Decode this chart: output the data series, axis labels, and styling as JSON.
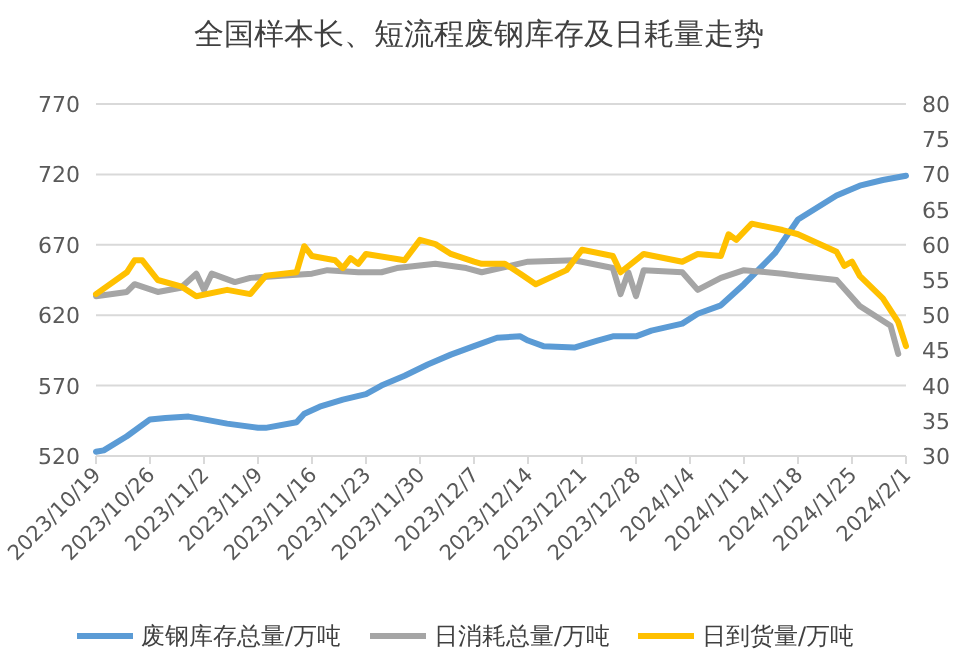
{
  "chart_data": {
    "type": "line",
    "title": "全国样本长、短流程废钢库存及日耗量走势",
    "xlim": [
      "2023-10-19",
      "2024-02-01"
    ],
    "xticks": [
      {
        "value": "2023-10-19",
        "label": "2023/10/19"
      },
      {
        "value": "2023-10-26",
        "label": "2023/10/26"
      },
      {
        "value": "2023-11-02",
        "label": "2023/11/2"
      },
      {
        "value": "2023-11-09",
        "label": "2023/11/9"
      },
      {
        "value": "2023-11-16",
        "label": "2023/11/16"
      },
      {
        "value": "2023-11-23",
        "label": "2023/11/23"
      },
      {
        "value": "2023-11-30",
        "label": "2023/11/30"
      },
      {
        "value": "2023-12-07",
        "label": "2023/12/7"
      },
      {
        "value": "2023-12-14",
        "label": "2023/12/14"
      },
      {
        "value": "2023-12-21",
        "label": "2023/12/21"
      },
      {
        "value": "2023-12-28",
        "label": "2023/12/28"
      },
      {
        "value": "2024-01-04",
        "label": "2024/1/4"
      },
      {
        "value": "2024-01-11",
        "label": "2024/1/11"
      },
      {
        "value": "2024-01-18",
        "label": "2024/1/18"
      },
      {
        "value": "2024-01-25",
        "label": "2024/1/25"
      },
      {
        "value": "2024-02-01",
        "label": "2024/2/1"
      }
    ],
    "ylim": [
      520,
      770
    ],
    "yticks": [
      520,
      570,
      620,
      670,
      720,
      770
    ],
    "y2lim": [
      30,
      80
    ],
    "y2ticks": [
      30,
      35,
      40,
      45,
      50,
      55,
      60,
      65,
      70,
      75,
      80
    ],
    "grid": "y",
    "legend": "bottom",
    "series": [
      {
        "name": "废钢库存总量/万吨",
        "color": "#5b9bd5",
        "x": [
          "2023-10-19",
          "2023-10-20",
          "2023-10-23",
          "2023-10-26",
          "2023-10-28",
          "2023-10-31",
          "2023-11-02",
          "2023-11-05",
          "2023-11-09",
          "2023-11-10",
          "2023-11-14",
          "2023-11-15",
          "2023-11-17",
          "2023-11-20",
          "2023-11-23",
          "2023-11-25",
          "2023-11-28",
          "2023-12-01",
          "2023-12-04",
          "2023-12-07",
          "2023-12-10",
          "2023-12-13",
          "2023-12-14",
          "2023-12-16",
          "2023-12-20",
          "2023-12-23",
          "2023-12-25",
          "2023-12-28",
          "2023-12-30",
          "2024-01-03",
          "2024-01-05",
          "2024-01-08",
          "2024-01-11",
          "2024-01-15",
          "2024-01-18",
          "2024-01-23",
          "2024-01-26",
          "2024-01-29",
          "2024-02-01"
        ],
        "values": [
          523,
          524,
          534,
          546,
          547,
          548,
          546,
          543,
          540,
          540,
          544,
          550,
          555,
          560,
          564,
          570,
          577,
          585,
          592,
          598,
          604,
          605,
          602,
          598,
          597,
          602,
          605,
          605,
          609,
          614,
          621,
          627,
          642,
          664,
          688,
          705,
          712,
          716,
          719
        ]
      },
      {
        "name": "日消耗总量/万吨",
        "color": "#a5a5a5",
        "axis": "y2",
        "x": [
          "2023-10-19",
          "2023-10-23",
          "2023-10-24",
          "2023-10-27",
          "2023-10-30",
          "2023-11-01",
          "2023-11-02",
          "2023-11-03",
          "2023-11-06",
          "2023-11-08",
          "2023-11-12",
          "2023-11-16",
          "2023-11-18",
          "2023-11-22",
          "2023-11-25",
          "2023-11-27",
          "2023-12-02",
          "2023-12-06",
          "2023-12-08",
          "2023-12-14",
          "2023-12-20",
          "2023-12-25",
          "2023-12-26",
          "2023-12-27",
          "2023-12-28",
          "2023-12-29",
          "2024-01-03",
          "2024-01-05",
          "2024-01-08",
          "2024-01-11",
          "2024-01-16",
          "2024-01-18",
          "2024-01-23",
          "2024-01-26",
          "2024-01-30",
          "2024-01-31"
        ],
        "values": [
          52.7,
          53.3,
          54.4,
          53.3,
          53.9,
          55.9,
          53.6,
          55.9,
          54.7,
          55.3,
          55.6,
          55.9,
          56.4,
          56.1,
          56.1,
          56.7,
          57.3,
          56.7,
          56.1,
          57.6,
          57.8,
          56.7,
          53,
          56.1,
          52.7,
          56.4,
          56.1,
          53.6,
          55.3,
          56.4,
          55.9,
          55.6,
          55,
          51.3,
          48.5,
          44.5
        ]
      },
      {
        "name": "日到货量/万吨",
        "color": "#ffc000",
        "axis": "y2",
        "x": [
          "2023-10-19",
          "2023-10-23",
          "2023-10-24",
          "2023-10-25",
          "2023-10-27",
          "2023-10-30",
          "2023-11-01",
          "2023-11-05",
          "2023-11-08",
          "2023-11-10",
          "2023-11-14",
          "2023-11-15",
          "2023-11-16",
          "2023-11-19",
          "2023-11-20",
          "2023-11-21",
          "2023-11-22",
          "2023-11-23",
          "2023-11-28",
          "2023-11-30",
          "2023-12-02",
          "2023-12-04",
          "2023-12-07",
          "2023-12-08",
          "2023-12-11",
          "2023-12-13",
          "2023-12-15",
          "2023-12-19",
          "2023-12-21",
          "2023-12-25",
          "2023-12-26",
          "2023-12-29",
          "2024-01-03",
          "2024-01-05",
          "2024-01-08",
          "2024-01-09",
          "2024-01-10",
          "2024-01-12",
          "2024-01-16",
          "2024-01-18",
          "2024-01-23",
          "2024-01-24",
          "2024-01-25",
          "2024-01-26",
          "2024-01-29",
          "2024-01-31",
          "2024-02-01"
        ],
        "values": [
          53,
          56.1,
          57.8,
          57.8,
          55,
          54.1,
          52.7,
          53.6,
          53,
          55.6,
          56.1,
          59.8,
          58.4,
          57.8,
          56.7,
          58.1,
          57.3,
          58.7,
          57.8,
          60.7,
          60.1,
          58.7,
          57.6,
          57.3,
          57.3,
          55.9,
          54.4,
          56.4,
          59.3,
          58.4,
          56.1,
          58.7,
          57.6,
          58.7,
          58.4,
          61.5,
          60.7,
          63,
          62.1,
          61.5,
          59,
          57,
          57.6,
          55.6,
          52.4,
          49,
          45.6
        ]
      }
    ]
  }
}
